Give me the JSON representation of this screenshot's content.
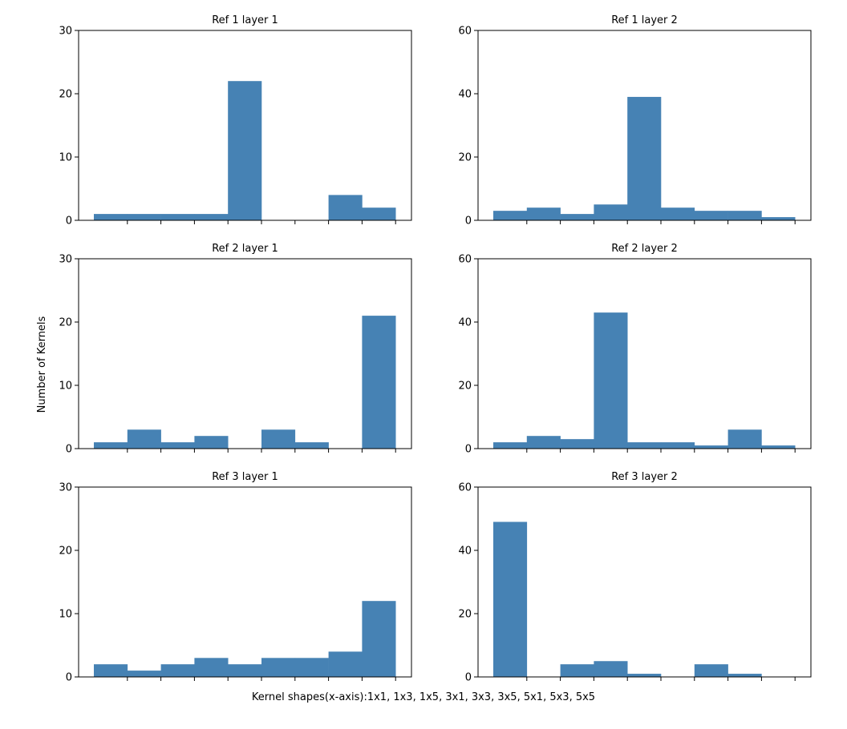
{
  "figure": {
    "xlabel": "Kernel shapes(x-axis):1x1, 1x3, 1x5, 3x1, 3x3, 3x5, 5x1, 5x3, 5x5",
    "ylabel": "Number of Kernels",
    "bar_color": "#4682b4"
  },
  "chart_data": [
    {
      "type": "bar",
      "title": "Ref 1 layer 1",
      "categories": [
        "1x1",
        "1x3",
        "1x5",
        "3x1",
        "3x3",
        "3x5",
        "5x1",
        "5x3",
        "5x5"
      ],
      "values": [
        1,
        1,
        1,
        1,
        22,
        0,
        0,
        4,
        2
      ],
      "ylim": [
        0,
        30
      ],
      "yticks": [
        0,
        10,
        20,
        30
      ]
    },
    {
      "type": "bar",
      "title": "Ref 1 layer 2",
      "categories": [
        "1x1",
        "1x3",
        "1x5",
        "3x1",
        "3x3",
        "3x5",
        "5x1",
        "5x3",
        "5x5"
      ],
      "values": [
        3,
        4,
        2,
        5,
        39,
        4,
        3,
        3,
        1
      ],
      "ylim": [
        0,
        60
      ],
      "yticks": [
        0,
        20,
        40,
        60
      ]
    },
    {
      "type": "bar",
      "title": "Ref 2 layer 1",
      "categories": [
        "1x1",
        "1x3",
        "1x5",
        "3x1",
        "3x3",
        "3x5",
        "5x1",
        "5x3",
        "5x5"
      ],
      "values": [
        1,
        3,
        1,
        2,
        0,
        3,
        1,
        0,
        21
      ],
      "ylim": [
        0,
        30
      ],
      "yticks": [
        0,
        10,
        20,
        30
      ]
    },
    {
      "type": "bar",
      "title": "Ref 2 layer 2",
      "categories": [
        "1x1",
        "1x3",
        "1x5",
        "3x1",
        "3x3",
        "3x5",
        "5x1",
        "5x3",
        "5x5"
      ],
      "values": [
        2,
        4,
        3,
        43,
        2,
        2,
        1,
        6,
        1
      ],
      "ylim": [
        0,
        60
      ],
      "yticks": [
        0,
        20,
        40,
        60
      ]
    },
    {
      "type": "bar",
      "title": "Ref 3 layer 1",
      "categories": [
        "1x1",
        "1x3",
        "1x5",
        "3x1",
        "3x3",
        "3x5",
        "5x1",
        "5x3",
        "5x5"
      ],
      "values": [
        2,
        1,
        2,
        3,
        2,
        3,
        3,
        4,
        12
      ],
      "ylim": [
        0,
        30
      ],
      "yticks": [
        0,
        10,
        20,
        30
      ]
    },
    {
      "type": "bar",
      "title": "Ref 3 layer 2",
      "categories": [
        "1x1",
        "1x3",
        "1x5",
        "3x1",
        "3x3",
        "3x5",
        "5x1",
        "5x3",
        "5x5"
      ],
      "values": [
        49,
        0,
        4,
        5,
        1,
        0,
        4,
        1,
        0
      ],
      "ylim": [
        0,
        60
      ],
      "yticks": [
        0,
        20,
        40,
        60
      ]
    }
  ]
}
